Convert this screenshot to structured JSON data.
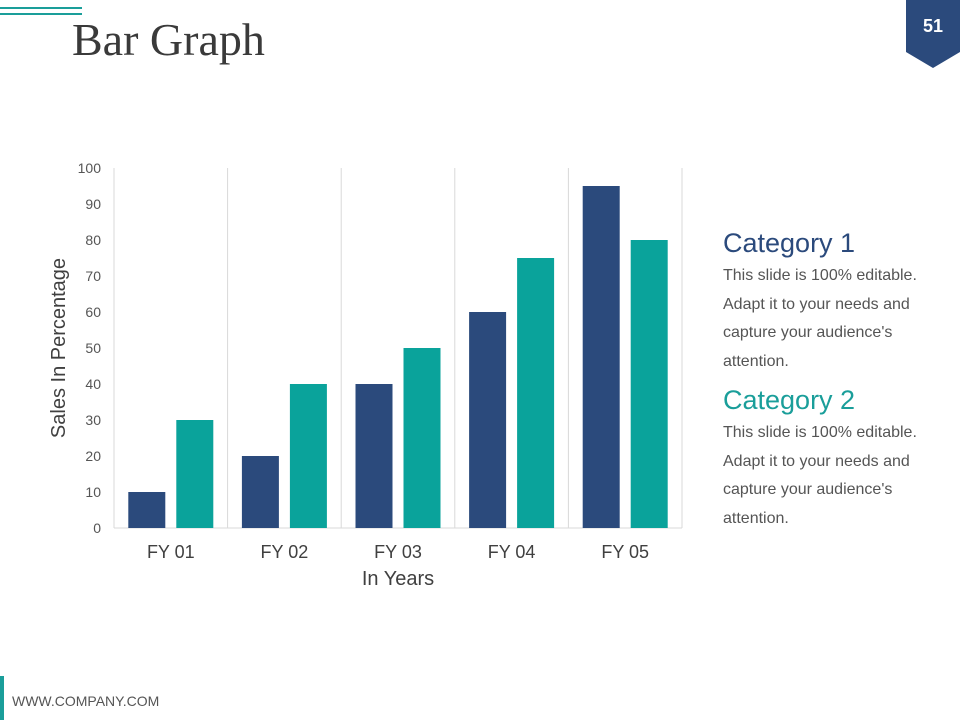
{
  "slide": {
    "title": "Bar Graph",
    "page_number": "51",
    "footer": "WWW.COMPANY.COM"
  },
  "colors": {
    "accent_teal": "#1a9e9a",
    "navy": "#2b4a7c",
    "teal_bar": "#0aa39b",
    "badge": "#2b4a7c"
  },
  "legend": [
    {
      "title": "Category 1",
      "color": "#2b4a7c",
      "description_lines": [
        "This slide is 100% editable.",
        "Adapt it to your needs and",
        "capture your audience's",
        "attention."
      ]
    },
    {
      "title": "Category 2",
      "color": "#1a9e9a",
      "description_lines": [
        "This slide is 100% editable.",
        "Adapt it to your needs and",
        "capture your audience's",
        "attention."
      ]
    }
  ],
  "chart_data": {
    "type": "bar",
    "categories": [
      "FY 01",
      "FY 02",
      "FY 03",
      "FY 04",
      "FY 05"
    ],
    "series": [
      {
        "name": "Category 1",
        "color": "#2b4a7c",
        "values": [
          10,
          20,
          40,
          60,
          95
        ]
      },
      {
        "name": "Category 2",
        "color": "#0aa39b",
        "values": [
          30,
          40,
          50,
          75,
          80
        ]
      }
    ],
    "xlabel": "In Years",
    "ylabel": "Sales In Percentage",
    "ylim": [
      0,
      100
    ],
    "yticks": [
      0,
      10,
      20,
      30,
      40,
      50,
      60,
      70,
      80,
      90,
      100
    ],
    "grid": "vertical separators",
    "legend_placement": "right"
  }
}
